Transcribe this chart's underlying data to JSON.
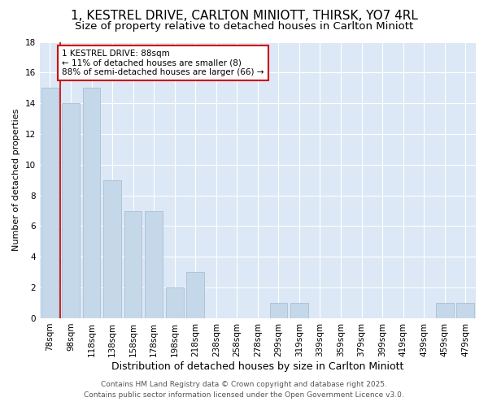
{
  "title": "1, KESTREL DRIVE, CARLTON MINIOTT, THIRSK, YO7 4RL",
  "subtitle": "Size of property relative to detached houses in Carlton Miniott",
  "xlabel": "Distribution of detached houses by size in Carlton Miniott",
  "ylabel": "Number of detached properties",
  "categories": [
    "78sqm",
    "98sqm",
    "118sqm",
    "138sqm",
    "158sqm",
    "178sqm",
    "198sqm",
    "218sqm",
    "238sqm",
    "258sqm",
    "278sqm",
    "299sqm",
    "319sqm",
    "339sqm",
    "359sqm",
    "379sqm",
    "399sqm",
    "419sqm",
    "439sqm",
    "459sqm",
    "479sqm"
  ],
  "values": [
    15,
    14,
    15,
    9,
    7,
    7,
    2,
    3,
    0,
    0,
    0,
    1,
    1,
    0,
    0,
    0,
    0,
    0,
    0,
    1,
    1
  ],
  "bar_color": "#c5d8ea",
  "bar_edgecolor": "#aabfd4",
  "annotation_title": "1 KESTREL DRIVE: 88sqm",
  "annotation_line1": "← 11% of detached houses are smaller (8)",
  "annotation_line2": "88% of semi-detached houses are larger (66) →",
  "annotation_box_facecolor": "#ffffff",
  "annotation_box_edgecolor": "#cc0000",
  "red_line_color": "#cc0000",
  "ylim": [
    0,
    18
  ],
  "yticks": [
    0,
    2,
    4,
    6,
    8,
    10,
    12,
    14,
    16,
    18
  ],
  "footer1": "Contains HM Land Registry data © Crown copyright and database right 2025.",
  "footer2": "Contains public sector information licensed under the Open Government Licence v3.0.",
  "background_color": "#ffffff",
  "plot_background": "#dce8f5",
  "grid_color": "#ffffff",
  "title_fontsize": 11,
  "subtitle_fontsize": 9.5,
  "xlabel_fontsize": 9,
  "ylabel_fontsize": 8,
  "tick_fontsize": 7.5,
  "annotation_fontsize": 7.5,
  "footer_fontsize": 6.5
}
